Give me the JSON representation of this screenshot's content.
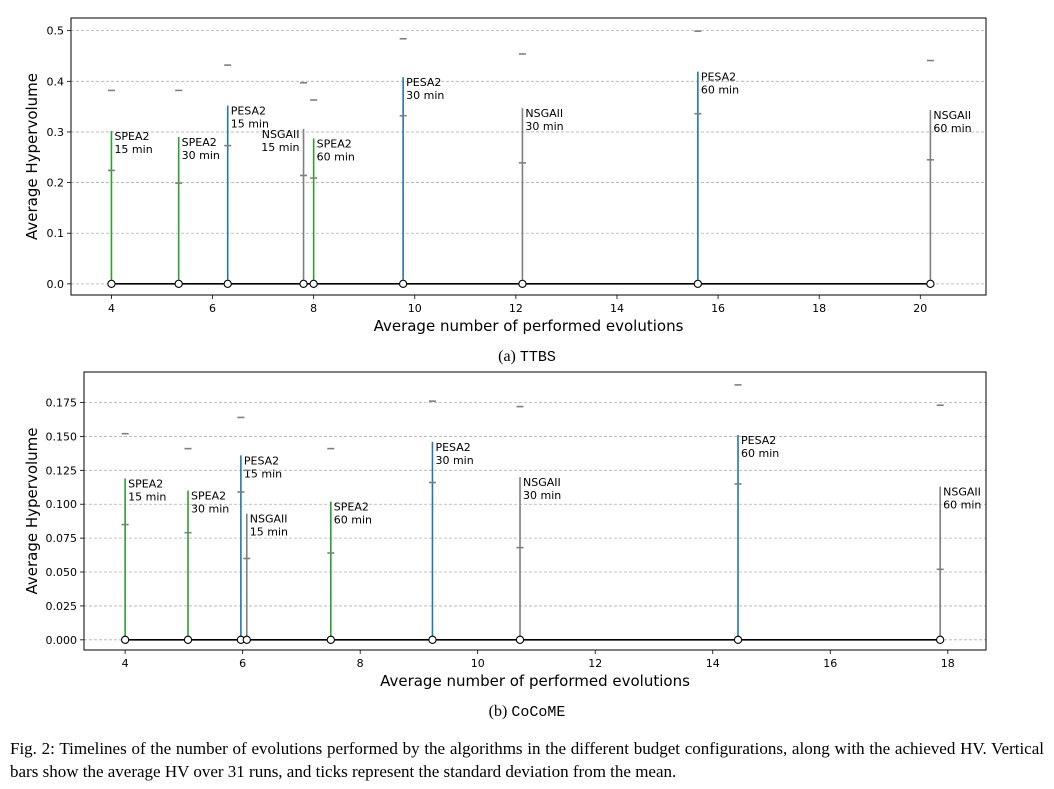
{
  "caption": "Fig. 2: Timelines of the number of evolutions performed by the algorithms in the different budget configurations, along with the achieved HV. Vertical bars show the average HV over 31 runs, and ticks represent the standard deviation from the mean.",
  "colors": {
    "SPEA2": "#2ca02c",
    "PESA2": "#1f77b4",
    "NSGAII": "#7f7f7f",
    "timeline": "#000000",
    "grid": "#b0b0b0"
  },
  "chart_data": [
    {
      "type": "bar",
      "subcaption_prefix": "(a)",
      "subcaption_name": "TTBS",
      "xlabel": "Average number of performed evolutions",
      "ylabel": "Average Hypervolume",
      "xlim": [
        3.2,
        21.3
      ],
      "ylim": [
        -0.022,
        0.525
      ],
      "xticks": [
        4,
        6,
        8,
        10,
        12,
        14,
        16,
        18,
        20
      ],
      "yticks": [
        0.0,
        0.1,
        0.2,
        0.3,
        0.4,
        0.5
      ],
      "ytick_labels": [
        "0.0",
        "0.1",
        "0.2",
        "0.3",
        "0.4",
        "0.5"
      ],
      "grid": "horizontal dashed",
      "points": [
        {
          "algorithm": "SPEA2",
          "budget": "15 min",
          "x": 4.0,
          "mean": 0.302,
          "std_low": 0.224,
          "std_high": 0.382,
          "label_side": "right"
        },
        {
          "algorithm": "SPEA2",
          "budget": "30 min",
          "x": 5.33,
          "mean": 0.29,
          "std_low": 0.199,
          "std_high": 0.382,
          "label_side": "right"
        },
        {
          "algorithm": "PESA2",
          "budget": "15 min",
          "x": 6.3,
          "mean": 0.352,
          "std_low": 0.273,
          "std_high": 0.432,
          "label_side": "right"
        },
        {
          "algorithm": "NSGAII",
          "budget": "15 min",
          "x": 7.8,
          "mean": 0.306,
          "std_low": 0.214,
          "std_high": 0.397,
          "label_side": "left"
        },
        {
          "algorithm": "SPEA2",
          "budget": "60 min",
          "x": 8.0,
          "mean": 0.287,
          "std_low": 0.209,
          "std_high": 0.363,
          "label_side": "right"
        },
        {
          "algorithm": "PESA2",
          "budget": "30 min",
          "x": 9.77,
          "mean": 0.408,
          "std_low": 0.332,
          "std_high": 0.484,
          "label_side": "right"
        },
        {
          "algorithm": "NSGAII",
          "budget": "30 min",
          "x": 12.13,
          "mean": 0.347,
          "std_low": 0.239,
          "std_high": 0.454,
          "label_side": "right"
        },
        {
          "algorithm": "PESA2",
          "budget": "60 min",
          "x": 15.6,
          "mean": 0.419,
          "std_low": 0.336,
          "std_high": 0.499,
          "label_side": "right"
        },
        {
          "algorithm": "NSGAII",
          "budget": "60 min",
          "x": 20.2,
          "mean": 0.343,
          "std_low": 0.245,
          "std_high": 0.441,
          "label_side": "right"
        }
      ]
    },
    {
      "type": "bar",
      "subcaption_prefix": "(b)",
      "subcaption_name": "CoCoME",
      "xlabel": "Average number of performed evolutions",
      "ylabel": "Average Hypervolume",
      "xlim": [
        3.3,
        18.65
      ],
      "ylim": [
        -0.0075,
        0.1975
      ],
      "xticks": [
        4,
        6,
        8,
        10,
        12,
        14,
        16,
        18
      ],
      "yticks": [
        0.0,
        0.025,
        0.05,
        0.075,
        0.1,
        0.125,
        0.15,
        0.175
      ],
      "ytick_labels": [
        "0.000",
        "0.025",
        "0.050",
        "0.075",
        "0.100",
        "0.125",
        "0.150",
        "0.175"
      ],
      "grid": "horizontal dashed",
      "points": [
        {
          "algorithm": "SPEA2",
          "budget": "15 min",
          "x": 4.0,
          "mean": 0.119,
          "std_low": 0.085,
          "std_high": 0.152,
          "label_side": "right"
        },
        {
          "algorithm": "SPEA2",
          "budget": "30 min",
          "x": 5.07,
          "mean": 0.11,
          "std_low": 0.079,
          "std_high": 0.141,
          "label_side": "right"
        },
        {
          "algorithm": "PESA2",
          "budget": "15 min",
          "x": 5.97,
          "mean": 0.136,
          "std_low": 0.109,
          "std_high": 0.164,
          "label_side": "right"
        },
        {
          "algorithm": "NSGAII",
          "budget": "15 min",
          "x": 6.07,
          "mean": 0.093,
          "std_low": 0.06,
          "std_high": 0.125,
          "label_side": "right"
        },
        {
          "algorithm": "SPEA2",
          "budget": "60 min",
          "x": 7.5,
          "mean": 0.102,
          "std_low": 0.064,
          "std_high": 0.141,
          "label_side": "right"
        },
        {
          "algorithm": "PESA2",
          "budget": "30 min",
          "x": 9.23,
          "mean": 0.146,
          "std_low": 0.116,
          "std_high": 0.176,
          "label_side": "right"
        },
        {
          "algorithm": "NSGAII",
          "budget": "30 min",
          "x": 10.72,
          "mean": 0.12,
          "std_low": 0.068,
          "std_high": 0.172,
          "label_side": "right"
        },
        {
          "algorithm": "PESA2",
          "budget": "60 min",
          "x": 14.43,
          "mean": 0.151,
          "std_low": 0.115,
          "std_high": 0.188,
          "label_side": "right"
        },
        {
          "algorithm": "NSGAII",
          "budget": "60 min",
          "x": 17.87,
          "mean": 0.113,
          "std_low": 0.052,
          "std_high": 0.173,
          "label_side": "right"
        }
      ]
    }
  ]
}
